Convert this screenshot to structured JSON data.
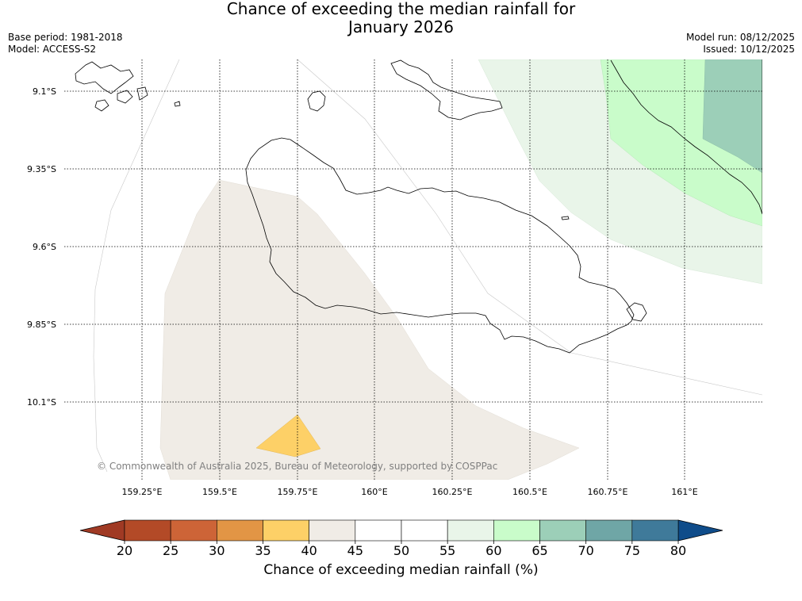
{
  "title": {
    "line1": "Chance of exceeding the median rainfall for",
    "line2": "January 2026"
  },
  "meta_left": {
    "base_period": "Base period: 1981-2018",
    "model": "Model: ACCESS-S2"
  },
  "meta_right": {
    "model_run": "Model run: 08/12/2025",
    "issued": "Issued: 10/12/2025"
  },
  "map": {
    "lon_range": [
      159.0,
      161.25
    ],
    "lat_range": [
      -10.35,
      -9.0
    ],
    "lon_ticks": [
      {
        "value": 159.25,
        "label": "159.25°E"
      },
      {
        "value": 159.5,
        "label": "159.5°E"
      },
      {
        "value": 159.75,
        "label": "159.75°E"
      },
      {
        "value": 160.0,
        "label": "160°E"
      },
      {
        "value": 160.25,
        "label": "160.25°E"
      },
      {
        "value": 160.5,
        "label": "160.5°E"
      },
      {
        "value": 160.75,
        "label": "160.75°E"
      },
      {
        "value": 161.0,
        "label": "161°E"
      }
    ],
    "lat_ticks": [
      {
        "value": -9.1,
        "label": "9.1°S"
      },
      {
        "value": -9.35,
        "label": "9.35°S"
      },
      {
        "value": -9.6,
        "label": "9.6°S"
      },
      {
        "value": -9.85,
        "label": "9.85°S"
      },
      {
        "value": -10.1,
        "label": "10.1°S"
      }
    ],
    "copyright": "© Commonwealth of Australia 2025, Bureau of Meteorology, supported by COSPPac"
  },
  "colorbar": {
    "label": "Chance of exceeding median rainfall (%)",
    "ticks": [
      "20",
      "25",
      "30",
      "35",
      "40",
      "45",
      "50",
      "55",
      "60",
      "65",
      "70",
      "75",
      "80"
    ],
    "colors": {
      "under": "#a03a24",
      "bins": [
        "#b34a27",
        "#cd6437",
        "#e29545",
        "#fdd067",
        "#f0ece6",
        "#ffffff",
        "#ffffff",
        "#e9f5e9",
        "#c9fcca",
        "#9ccfb8",
        "#6fa6a6",
        "#3f7a9a"
      ],
      "over": "#0f4c8a"
    }
  }
}
